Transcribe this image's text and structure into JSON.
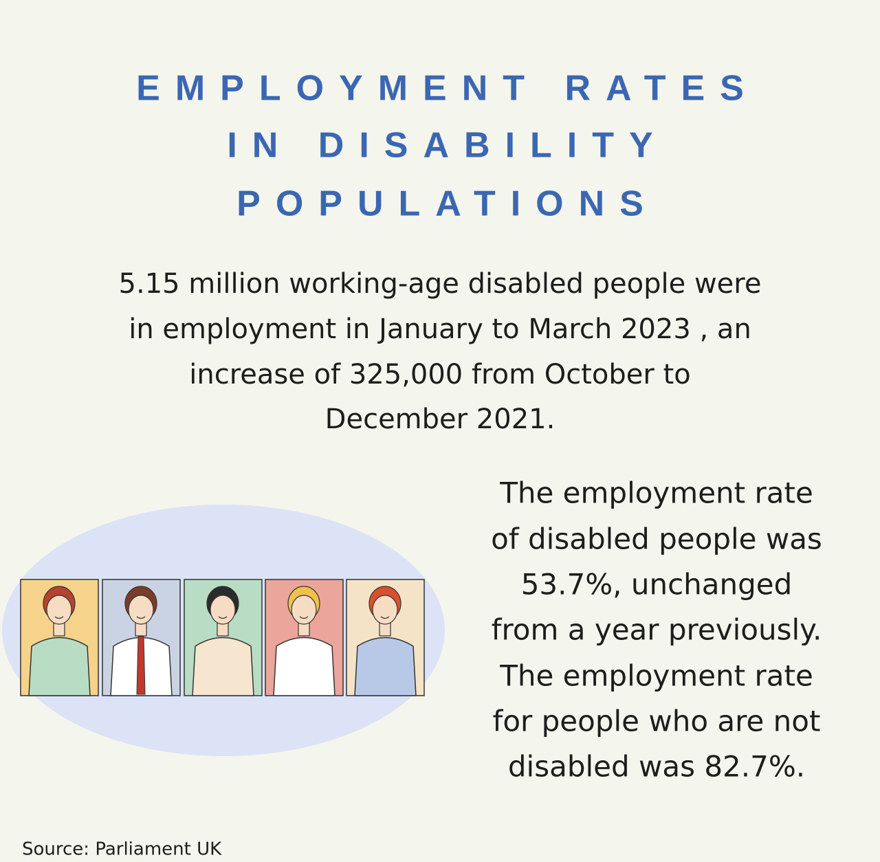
{
  "header": {
    "title_lines": [
      "EMPLOYMENT RATES",
      "IN DISABILITY",
      "POPULATIONS"
    ]
  },
  "intro": {
    "lines": [
      "5.15 million working-age disabled people were",
      "in employment in January to March 2023 , an",
      "increase of 325,000 from October to",
      "December 2021."
    ]
  },
  "detail": {
    "lines": [
      "The employment rate",
      "of disabled people was",
      "53.7%, unchanged",
      "from a year previously.",
      "The employment rate",
      "for people who are not",
      "disabled was 82.7%."
    ]
  },
  "source": "Source: Parliament UK"
}
